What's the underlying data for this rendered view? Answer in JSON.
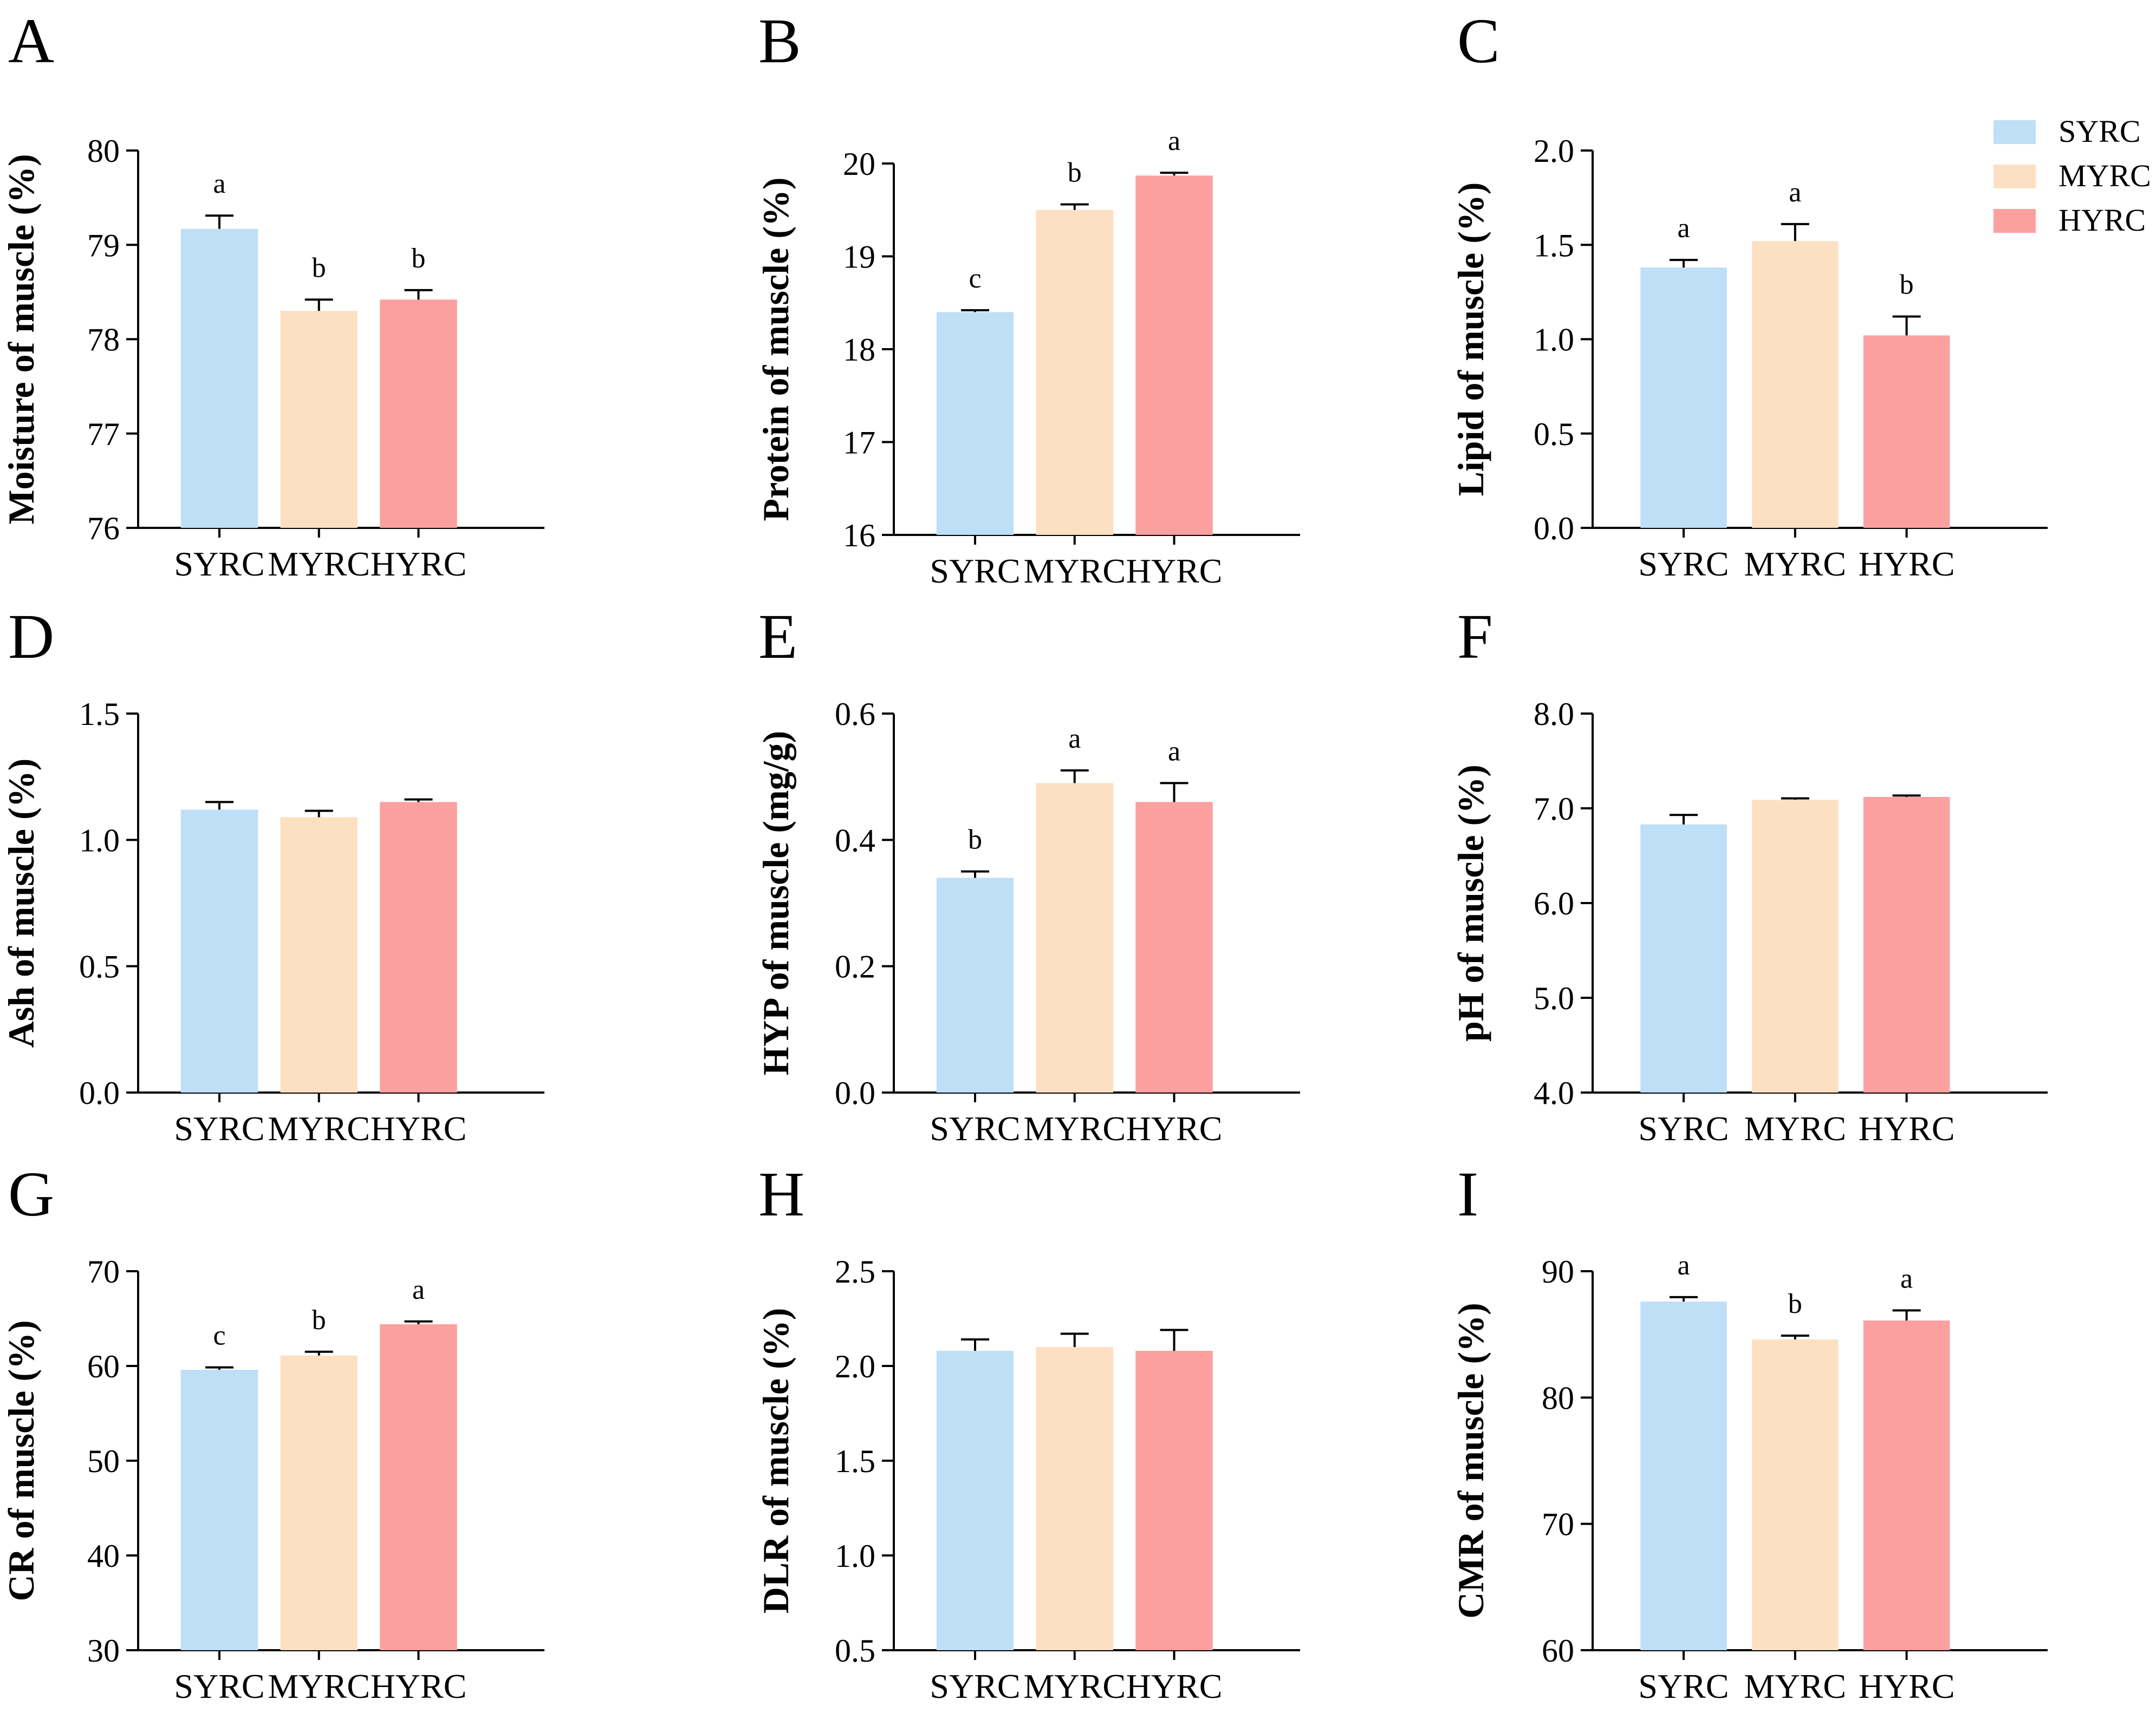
{
  "legend": {
    "items": [
      {
        "label": "SYRC",
        "color": "#bfdff7"
      },
      {
        "label": "MYRC",
        "color": "#fde0c2"
      },
      {
        "label": "HYRC",
        "color": "#fca09f"
      }
    ]
  },
  "chart_data": [
    {
      "panel": "A",
      "type": "bar",
      "ylabel": "Moisture of muscle (%)",
      "ylim": [
        76,
        80
      ],
      "yticks": [
        "76",
        "77",
        "78",
        "79",
        "80"
      ],
      "categories": [
        "SYRC",
        "MYRC",
        "HYRC"
      ],
      "values": [
        79.17,
        78.3,
        78.42
      ],
      "errors": [
        0.14,
        0.12,
        0.1
      ],
      "significance": [
        "a",
        "b",
        "b"
      ]
    },
    {
      "panel": "B",
      "type": "bar",
      "ylabel": "Protein of muscle (%)",
      "ylim": [
        16,
        20
      ],
      "yticks": [
        "16",
        "17",
        "18",
        "19",
        "20"
      ],
      "categories": [
        "SYRC",
        "MYRC",
        "HYRC"
      ],
      "values": [
        18.4,
        19.5,
        19.87
      ],
      "errors": [
        0.02,
        0.06,
        0.03
      ],
      "significance": [
        "c",
        "b",
        "a"
      ]
    },
    {
      "panel": "C",
      "type": "bar",
      "ylabel": "Lipid of muscle (%)",
      "ylim": [
        0,
        2
      ],
      "yticks": [
        "0.0",
        "0.5",
        "1.0",
        "1.5",
        "2.0"
      ],
      "categories": [
        "SYRC",
        "MYRC",
        "HYRC"
      ],
      "values": [
        1.38,
        1.52,
        1.02
      ],
      "errors": [
        0.04,
        0.09,
        0.1
      ],
      "significance": [
        "a",
        "a",
        "b"
      ]
    },
    {
      "panel": "D",
      "type": "bar",
      "ylabel": "Ash of muscle (%)",
      "ylim": [
        0,
        1.5
      ],
      "yticks": [
        "0.0",
        "0.5",
        "1.0",
        "1.5"
      ],
      "categories": [
        "SYRC",
        "MYRC",
        "HYRC"
      ],
      "values": [
        1.12,
        1.09,
        1.15
      ],
      "errors": [
        0.03,
        0.025,
        0.01
      ],
      "significance": []
    },
    {
      "panel": "E",
      "type": "bar",
      "ylabel": "HYP of muscle (mg/g)",
      "ylim": [
        0,
        0.6
      ],
      "yticks": [
        "0.0",
        "0.2",
        "0.4",
        "0.6"
      ],
      "categories": [
        "SYRC",
        "MYRC",
        "HYRC"
      ],
      "values": [
        0.34,
        0.49,
        0.46
      ],
      "errors": [
        0.01,
        0.02,
        0.03
      ],
      "significance": [
        "b",
        "a",
        "a"
      ]
    },
    {
      "panel": "F",
      "type": "bar",
      "ylabel": "pH of muscle (%)",
      "ylim": [
        4,
        8
      ],
      "yticks": [
        "4.0",
        "5.0",
        "6.0",
        "7.0",
        "8.0"
      ],
      "categories": [
        "SYRC",
        "MYRC",
        "HYRC"
      ],
      "values": [
        6.83,
        7.09,
        7.12
      ],
      "errors": [
        0.1,
        0.015,
        0.015
      ],
      "significance": []
    },
    {
      "panel": "G",
      "type": "bar",
      "ylabel": "CR of muscle (%)",
      "ylim": [
        30,
        70
      ],
      "yticks": [
        "30",
        "40",
        "50",
        "60",
        "70"
      ],
      "categories": [
        "SYRC",
        "MYRC",
        "HYRC"
      ],
      "values": [
        59.6,
        61.1,
        64.4
      ],
      "errors": [
        0.25,
        0.4,
        0.3
      ],
      "significance": [
        "c",
        "b",
        "a"
      ]
    },
    {
      "panel": "H",
      "type": "bar",
      "ylabel": "DLR of muscle (%)",
      "ylim": [
        0.5,
        2.5
      ],
      "yticks": [
        "0.5",
        "1.0",
        "1.5",
        "2.0",
        "2.5"
      ],
      "categories": [
        "SYRC",
        "MYRC",
        "HYRC"
      ],
      "values": [
        2.08,
        2.1,
        2.08
      ],
      "errors": [
        0.06,
        0.07,
        0.11
      ],
      "significance": []
    },
    {
      "panel": "I",
      "type": "bar",
      "ylabel": "CMR of muscle (%)",
      "ylim": [
        60,
        90
      ],
      "yticks": [
        "60",
        "70",
        "80",
        "90"
      ],
      "categories": [
        "SYRC",
        "MYRC",
        "HYRC"
      ],
      "values": [
        87.6,
        84.6,
        86.1
      ],
      "errors": [
        0.35,
        0.3,
        0.8
      ],
      "significance": [
        "a",
        "b",
        "a"
      ]
    }
  ]
}
